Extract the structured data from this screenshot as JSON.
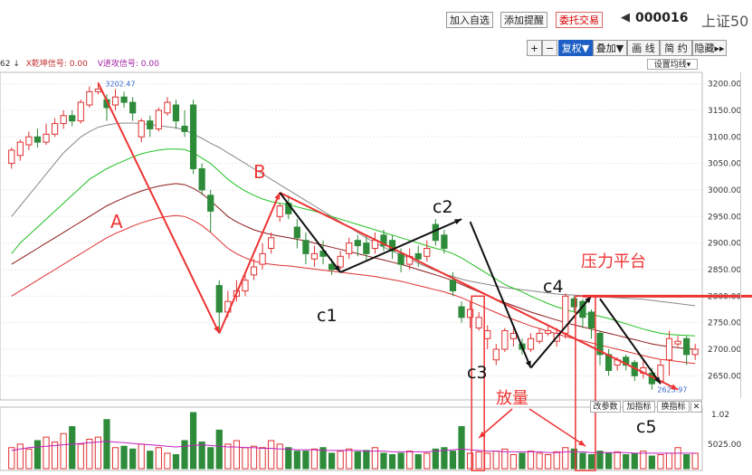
{
  "toolbar": {
    "add_watchlist": "加入自选",
    "add_alert": "添加提醒",
    "trade": "委托交易",
    "prev_arrow": "◀",
    "stock_code": "000016",
    "index_name": "上证50"
  },
  "tools": {
    "plus": "+",
    "minus": "−",
    "adjust": "复权▼",
    "overlay": "叠加▼",
    "draw": "画 线",
    "simple": "简 约",
    "hide": "隐藏▸▸"
  },
  "indicators": {
    "prefix": "62 ↓",
    "x_signal": "X乾坤信号: 0.00",
    "v_signal": "V进攻信号: 0.00",
    "settings": "设置均线▾"
  },
  "volume_buttons": {
    "change_params": "改参数",
    "add_indicator": "加指标",
    "switch_indicator": "换指标",
    "close": "✕"
  },
  "colors": {
    "up": "#e03030",
    "down": "#2e8b3a",
    "ma_green": "#20c020",
    "ma_gray": "#888888",
    "ma_dark_red": "#8b1a1a",
    "annotation_red": "#ee3333",
    "annotation_black": "#111111",
    "volume_ma": "#c020c0"
  },
  "chart_data": {
    "type": "candlestick",
    "y_ticks": [
      "3200.00",
      "3150.00",
      "3100.00",
      "3050.00",
      "3000.00",
      "2950.00",
      "2900.00",
      "2850.00",
      "2800.00",
      "2750.00",
      "2700.00",
      "2650.00"
    ],
    "ylim": [
      2608,
      3218
    ],
    "volume_ticks": [
      "1.02",
      "5025.00"
    ],
    "high_label": "3202.47",
    "low_label": "2623.97",
    "candles": [
      [
        3050,
        3075,
        3040,
        3080
      ],
      [
        3065,
        3090,
        3055,
        3095
      ],
      [
        3085,
        3100,
        3075,
        3110
      ],
      [
        3100,
        3090,
        3080,
        3115
      ],
      [
        3090,
        3105,
        3085,
        3125
      ],
      [
        3105,
        3125,
        3100,
        3135
      ],
      [
        3125,
        3140,
        3115,
        3150
      ],
      [
        3140,
        3130,
        3120,
        3150
      ],
      [
        3130,
        3165,
        3125,
        3170
      ],
      [
        3160,
        3185,
        3155,
        3195
      ],
      [
        3185,
        3190,
        3180,
        3202
      ],
      [
        3170,
        3155,
        3130,
        3180
      ],
      [
        3160,
        3175,
        3150,
        3190
      ],
      [
        3175,
        3165,
        3155,
        3185
      ],
      [
        3165,
        3145,
        3130,
        3175
      ],
      [
        3100,
        3130,
        3090,
        3135
      ],
      [
        3130,
        3115,
        3100,
        3140
      ],
      [
        3115,
        3150,
        3110,
        3155
      ],
      [
        3145,
        3165,
        3140,
        3175
      ],
      [
        3160,
        3130,
        3115,
        3170
      ],
      [
        3120,
        3110,
        3100,
        3150
      ],
      [
        3160,
        3040,
        3030,
        3170
      ],
      [
        3040,
        3000,
        2990,
        3050
      ],
      [
        2990,
        2960,
        2920,
        3000
      ],
      [
        2820,
        2770,
        2730,
        2830
      ],
      [
        2770,
        2790,
        2760,
        2810
      ],
      [
        2800,
        2810,
        2790,
        2830
      ],
      [
        2810,
        2830,
        2800,
        2840
      ],
      [
        2840,
        2855,
        2830,
        2870
      ],
      [
        2860,
        2880,
        2850,
        2900
      ],
      [
        2890,
        2910,
        2880,
        2920
      ],
      [
        2950,
        2970,
        2940,
        2975
      ],
      [
        2975,
        2955,
        2945,
        2990
      ],
      [
        2930,
        2910,
        2890,
        2945
      ],
      [
        2905,
        2880,
        2860,
        2920
      ],
      [
        2870,
        2880,
        2855,
        2895
      ],
      [
        2885,
        2875,
        2860,
        2905
      ],
      [
        2860,
        2850,
        2840,
        2870
      ],
      [
        2855,
        2875,
        2850,
        2885
      ],
      [
        2880,
        2900,
        2870,
        2910
      ],
      [
        2905,
        2895,
        2875,
        2915
      ],
      [
        2900,
        2880,
        2865,
        2915
      ],
      [
        2890,
        2905,
        2880,
        2920
      ],
      [
        2915,
        2895,
        2885,
        2925
      ],
      [
        2905,
        2885,
        2870,
        2915
      ],
      [
        2880,
        2860,
        2845,
        2890
      ],
      [
        2860,
        2875,
        2850,
        2890
      ],
      [
        2880,
        2870,
        2855,
        2895
      ],
      [
        2875,
        2890,
        2865,
        2905
      ],
      [
        2935,
        2905,
        2895,
        2945
      ],
      [
        2915,
        2890,
        2880,
        2925
      ],
      [
        2830,
        2810,
        2800,
        2845
      ],
      [
        2780,
        2760,
        2750,
        2790
      ],
      [
        2760,
        2775,
        2740,
        2790
      ],
      [
        2740,
        2760,
        2735,
        2770
      ],
      [
        2720,
        2735,
        2700,
        2745
      ],
      [
        2680,
        2700,
        2670,
        2710
      ],
      [
        2700,
        2735,
        2695,
        2740
      ],
      [
        2720,
        2730,
        2705,
        2745
      ],
      [
        2710,
        2700,
        2690,
        2720
      ],
      [
        2700,
        2720,
        2695,
        2730
      ],
      [
        2715,
        2730,
        2710,
        2740
      ],
      [
        2730,
        2735,
        2725,
        2745
      ],
      [
        2715,
        2730,
        2705,
        2740
      ],
      [
        2730,
        2800,
        2720,
        2805
      ],
      [
        2795,
        2780,
        2770,
        2800
      ],
      [
        2790,
        2760,
        2740,
        2795
      ],
      [
        2770,
        2740,
        2720,
        2775
      ],
      [
        2730,
        2690,
        2670,
        2735
      ],
      [
        2690,
        2660,
        2650,
        2700
      ],
      [
        2670,
        2680,
        2660,
        2685
      ],
      [
        2685,
        2670,
        2660,
        2690
      ],
      [
        2675,
        2650,
        2640,
        2680
      ],
      [
        2655,
        2665,
        2645,
        2680
      ],
      [
        2655,
        2635,
        2624,
        2665
      ],
      [
        2640,
        2670,
        2635,
        2680
      ],
      [
        2680,
        2720,
        2650,
        2735
      ],
      [
        2710,
        2715,
        2705,
        2725
      ],
      [
        2720,
        2690,
        2670,
        2725
      ],
      [
        2690,
        2700,
        2680,
        2710
      ]
    ],
    "volumes": [
      30,
      35,
      28,
      40,
      45,
      38,
      50,
      60,
      35,
      42,
      45,
      70,
      30,
      32,
      28,
      35,
      25,
      30,
      22,
      20,
      40,
      80,
      38,
      30,
      55,
      35,
      40,
      30,
      32,
      30,
      40,
      35,
      30,
      25,
      25,
      28,
      30,
      22,
      25,
      28,
      24,
      26,
      30,
      22,
      20,
      22,
      25,
      20,
      22,
      28,
      30,
      25,
      60,
      22,
      24,
      22,
      25,
      28,
      20,
      22,
      25,
      22,
      20,
      24,
      30,
      28,
      22,
      20,
      25,
      22,
      24,
      20,
      22,
      25,
      18,
      20,
      22,
      30,
      20,
      22
    ],
    "ma_gray": [
      2950,
      2970,
      2990,
      3010,
      3030,
      3050,
      3070,
      3085,
      3100,
      3110,
      3118,
      3122,
      3125,
      3126,
      3126,
      3125,
      3123,
      3121,
      3119,
      3117,
      3113,
      3105,
      3097,
      3088,
      3080,
      3070,
      3060,
      3050,
      3040,
      3030,
      3020,
      3010,
      3000,
      2990,
      2980,
      2970,
      2960,
      2950,
      2940,
      2930,
      2920,
      2910,
      2900,
      2892,
      2885,
      2878,
      2870,
      2862,
      2855,
      2848,
      2842,
      2837,
      2832,
      2828,
      2825,
      2822,
      2819,
      2816,
      2814,
      2812,
      2810,
      2808,
      2806,
      2804,
      2803,
      2802,
      2801,
      2800,
      2799,
      2798,
      2797,
      2796,
      2795,
      2794,
      2792,
      2790,
      2788,
      2786,
      2784,
      2782
    ],
    "ma_green": [
      2880,
      2900,
      2915,
      2930,
      2945,
      2960,
      2975,
      2990,
      3005,
      3020,
      3030,
      3040,
      3048,
      3055,
      3062,
      3068,
      3072,
      3075,
      3077,
      3077,
      3076,
      3070,
      3060,
      3050,
      3035,
      3020,
      3008,
      2998,
      2990,
      2983,
      2978,
      2975,
      2972,
      2968,
      2964,
      2960,
      2955,
      2950,
      2945,
      2940,
      2935,
      2930,
      2925,
      2920,
      2915,
      2910,
      2905,
      2900,
      2895,
      2890,
      2886,
      2880,
      2872,
      2862,
      2852,
      2842,
      2832,
      2822,
      2815,
      2808,
      2800,
      2793,
      2786,
      2780,
      2775,
      2770,
      2768,
      2765,
      2762,
      2758,
      2753,
      2748,
      2743,
      2738,
      2734,
      2730,
      2728,
      2727,
      2726,
      2725
    ],
    "ma_darkred": [
      2860,
      2870,
      2880,
      2890,
      2900,
      2910,
      2920,
      2930,
      2940,
      2950,
      2960,
      2970,
      2978,
      2985,
      2992,
      2998,
      3003,
      3007,
      3010,
      3012,
      3010,
      3003,
      2993,
      2980,
      2965,
      2950,
      2940,
      2932,
      2925,
      2920,
      2916,
      2913,
      2910,
      2907,
      2904,
      2900,
      2896,
      2892,
      2888,
      2884,
      2880,
      2876,
      2872,
      2868,
      2864,
      2860,
      2855,
      2850,
      2845,
      2840,
      2835,
      2829,
      2822,
      2815,
      2808,
      2801,
      2794,
      2788,
      2782,
      2776,
      2770,
      2765,
      2760,
      2755,
      2750,
      2746,
      2742,
      2738,
      2734,
      2730,
      2726,
      2722,
      2718,
      2714,
      2710,
      2707,
      2705,
      2703,
      2701,
      2700
    ],
    "ma_red": [
      2800,
      2810,
      2820,
      2830,
      2840,
      2850,
      2860,
      2870,
      2880,
      2890,
      2900,
      2910,
      2918,
      2925,
      2932,
      2938,
      2943,
      2947,
      2950,
      2952,
      2950,
      2943,
      2933,
      2920,
      2905,
      2890,
      2880,
      2872,
      2866,
      2862,
      2860,
      2858,
      2857,
      2855,
      2853,
      2851,
      2849,
      2847,
      2845,
      2843,
      2841,
      2839,
      2837,
      2834,
      2831,
      2828,
      2824,
      2820,
      2816,
      2812,
      2808,
      2803,
      2797,
      2790,
      2783,
      2776,
      2769,
      2762,
      2756,
      2750,
      2744,
      2739,
      2734,
      2729,
      2724,
      2720,
      2716,
      2712,
      2708,
      2704,
      2700,
      2696,
      2692,
      2688,
      2684,
      2681,
      2679,
      2677,
      2675,
      2673
    ],
    "volume_ma": [
      26,
      28,
      30,
      31,
      32,
      33,
      34,
      35,
      36,
      37,
      38,
      39,
      38,
      37,
      36,
      35,
      34,
      33,
      32,
      31,
      32,
      33,
      34,
      33,
      32,
      31,
      31,
      30,
      30,
      29,
      29,
      28,
      28,
      27,
      27,
      27,
      26,
      26,
      26,
      26,
      26,
      25,
      25,
      25,
      24,
      24,
      24,
      24,
      24,
      25,
      26,
      27,
      28,
      27,
      26,
      25,
      25,
      24,
      24,
      24,
      24,
      24,
      23,
      23,
      24,
      24,
      24,
      23,
      23,
      23,
      23,
      23,
      22,
      22,
      22,
      22,
      22,
      22,
      22,
      22
    ],
    "annotations": {
      "A": "A",
      "B": "B",
      "c1": "c1",
      "c2": "c2",
      "c3": "c3",
      "c4": "c4",
      "c5": "c5",
      "pressure": "压力平台",
      "volume_up": "放量"
    }
  }
}
